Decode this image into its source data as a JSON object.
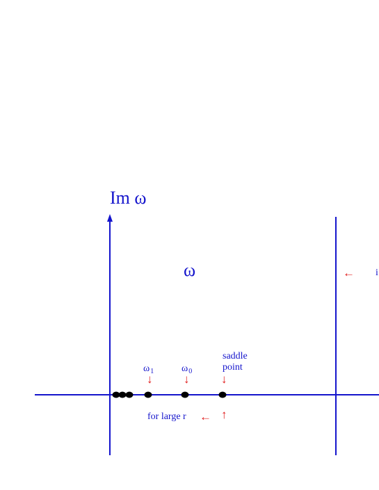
{
  "labels": {
    "im_axis": "Im ω",
    "omega": "ω",
    "omega1": {
      "base": "ω",
      "sub": "1"
    },
    "omega0": {
      "base": "ω",
      "sub": "0"
    },
    "saddle_line1": "saddle",
    "saddle_line2": "point",
    "for_large_r": "for large r",
    "clipped_right": "i"
  },
  "arrows": {
    "down": "↓",
    "up": "↑",
    "left": "←"
  },
  "colors": {
    "axis": "#1414cc",
    "label": "#1414cc",
    "annotation": "#e01818",
    "point": "#000000"
  }
}
